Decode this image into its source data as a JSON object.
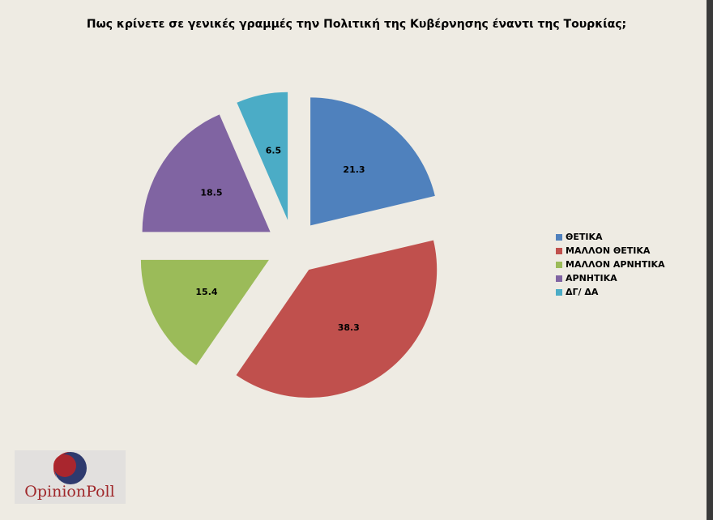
{
  "chart_data": {
    "type": "pie",
    "title": "Πως κρίνετε σε γενικές γραμμές την Πολιτική της Κυβέρνησης έναντι της Τουρκίας;",
    "categories": [
      "ΘΕΤΙΚΑ",
      "ΜΑΛΛΟΝ ΘΕΤΙΚΑ",
      "ΜΑΛΛΟΝ ΑΡΝΗΤΙΚΑ",
      "ΑΡΝΗΤΙΚΑ",
      "ΔΓ/ ΔΑ"
    ],
    "values": [
      21.3,
      38.3,
      15.4,
      18.5,
      6.5
    ],
    "colors": [
      "#4f81bd",
      "#c0504d",
      "#9bbb59",
      "#8064a2",
      "#4bacc6"
    ],
    "legend": "right"
  },
  "logo": "OpinionPoll"
}
